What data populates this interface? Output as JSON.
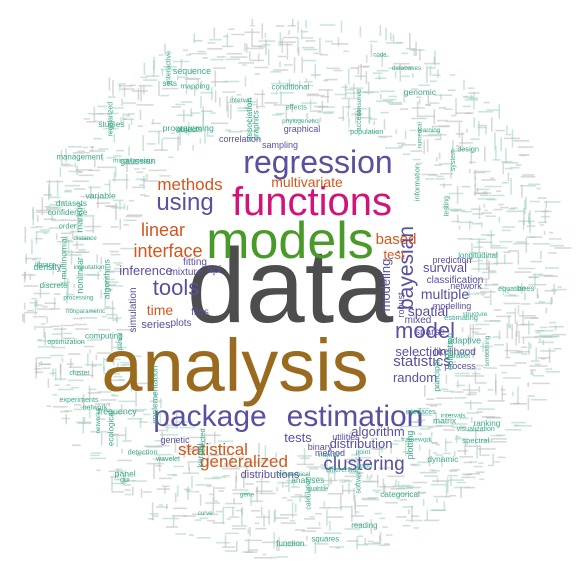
{
  "palette": {
    "gray": "#4d4d4d",
    "brown": "#9a6a1f",
    "purple": "#5a4fa0",
    "green": "#4a9a2a",
    "magenta": "#d1147a",
    "orange": "#d4561a",
    "teal": "#3aa88a",
    "background": "#ffffff"
  },
  "words": [
    {
      "text": "data",
      "color": "gray"
    },
    {
      "text": "analysis",
      "color": "brown"
    },
    {
      "text": "models",
      "color": "green"
    },
    {
      "text": "functions",
      "color": "magenta"
    },
    {
      "text": "regression",
      "color": "purple"
    },
    {
      "text": "package",
      "color": "purple"
    },
    {
      "text": "estimation",
      "color": "purple"
    },
    {
      "text": "using",
      "color": "purple"
    },
    {
      "text": "methods",
      "color": "orange"
    },
    {
      "text": "tools",
      "color": "purple"
    },
    {
      "text": "linear",
      "color": "orange"
    },
    {
      "text": "interface",
      "color": "orange"
    },
    {
      "text": "bayesian",
      "color": "purple"
    },
    {
      "text": "model",
      "color": "purple"
    },
    {
      "text": "multivariate",
      "color": "orange"
    },
    {
      "text": "statistical",
      "color": "orange"
    },
    {
      "text": "generalized",
      "color": "orange"
    },
    {
      "text": "clustering",
      "color": "purple"
    },
    {
      "text": "time",
      "color": "orange"
    },
    {
      "text": "inference",
      "color": "purple"
    },
    {
      "text": "based",
      "color": "orange"
    },
    {
      "text": "test",
      "color": "orange"
    },
    {
      "text": "spatial",
      "color": "purple"
    },
    {
      "text": "multiple",
      "color": "purple"
    },
    {
      "text": "survival",
      "color": "purple"
    },
    {
      "text": "statistics",
      "color": "purple"
    },
    {
      "text": "selection",
      "color": "purple"
    },
    {
      "text": "random",
      "color": "purple"
    },
    {
      "text": "distribution",
      "color": "purple"
    },
    {
      "text": "tests",
      "color": "purple"
    },
    {
      "text": "algorithm",
      "color": "purple"
    },
    {
      "text": "modeling",
      "color": "purple"
    },
    {
      "text": "series",
      "color": "purple"
    },
    {
      "text": "classification",
      "color": "purple"
    },
    {
      "text": "likelihood",
      "color": "purple"
    },
    {
      "text": "distributions",
      "color": "purple"
    },
    {
      "text": "mixed",
      "color": "purple"
    },
    {
      "text": "sparse",
      "color": "purple"
    },
    {
      "text": "api",
      "color": "purple"
    },
    {
      "text": "files",
      "color": "purple"
    },
    {
      "text": "plots",
      "color": "purple"
    },
    {
      "text": "fitting",
      "color": "purple"
    },
    {
      "text": "mixture",
      "color": "purple"
    },
    {
      "text": "simulation",
      "color": "purple"
    },
    {
      "text": "process",
      "color": "purple"
    },
    {
      "text": "method",
      "color": "purple"
    },
    {
      "text": "genetic",
      "color": "purple"
    },
    {
      "text": "binary",
      "color": "purple"
    },
    {
      "text": "utilities",
      "color": "purple"
    },
    {
      "text": "network",
      "color": "purple"
    },
    {
      "text": "prediction",
      "color": "purple"
    },
    {
      "text": "modelling",
      "color": "purple"
    },
    {
      "text": "robust",
      "color": "purple"
    },
    {
      "text": "sampling",
      "color": "purple"
    },
    {
      "text": "correlation",
      "color": "purple"
    },
    {
      "text": "graphical",
      "color": "purple"
    },
    {
      "text": "optimization",
      "color": "teal"
    },
    {
      "text": "visualization",
      "color": "teal"
    },
    {
      "text": "gaussian",
      "color": "teal"
    },
    {
      "text": "learning",
      "color": "teal"
    },
    {
      "text": "dynamic",
      "color": "teal"
    },
    {
      "text": "testing",
      "color": "teal"
    },
    {
      "text": "nonparametric",
      "color": "teal"
    },
    {
      "text": "network",
      "color": "teal"
    },
    {
      "text": "density",
      "color": "teal"
    },
    {
      "text": "conditional",
      "color": "teal"
    },
    {
      "text": "gene",
      "color": "teal"
    },
    {
      "text": "lasso",
      "color": "teal"
    },
    {
      "text": "framework",
      "color": "teal"
    },
    {
      "text": "adaptive",
      "color": "teal"
    },
    {
      "text": "design",
      "color": "teal"
    },
    {
      "text": "population",
      "color": "teal"
    },
    {
      "text": "hierarchical",
      "color": "teal"
    },
    {
      "text": "library",
      "color": "teal"
    },
    {
      "text": "structure",
      "color": "teal"
    },
    {
      "text": "phylogenetic",
      "color": "teal"
    },
    {
      "text": "information",
      "color": "teal"
    },
    {
      "text": "imputation",
      "color": "teal"
    },
    {
      "text": "censored",
      "color": "teal"
    },
    {
      "text": "effects",
      "color": "teal"
    },
    {
      "text": "confidence",
      "color": "teal"
    },
    {
      "text": "intervals",
      "color": "teal"
    },
    {
      "text": "distance",
      "color": "teal"
    },
    {
      "text": "partial",
      "color": "teal"
    },
    {
      "text": "networks",
      "color": "teal"
    },
    {
      "text": "variable",
      "color": "teal"
    },
    {
      "text": "matrix",
      "color": "teal"
    },
    {
      "text": "system",
      "color": "teal"
    },
    {
      "text": "differential",
      "color": "teal"
    },
    {
      "text": "objects",
      "color": "teal"
    },
    {
      "text": "implementation",
      "color": "teal"
    },
    {
      "text": "markov",
      "color": "teal"
    },
    {
      "text": "experiments",
      "color": "teal"
    },
    {
      "text": "graphics",
      "color": "teal"
    },
    {
      "text": "algorithms",
      "color": "teal"
    },
    {
      "text": "association",
      "color": "teal"
    },
    {
      "text": "datasets",
      "color": "teal"
    },
    {
      "text": "kernel",
      "color": "teal"
    },
    {
      "text": "software",
      "color": "teal"
    },
    {
      "text": "interval",
      "color": "teal"
    },
    {
      "text": "interactive",
      "color": "teal"
    },
    {
      "text": "detection",
      "color": "teal"
    },
    {
      "text": "parallel",
      "color": "teal"
    },
    {
      "text": "plotting",
      "color": "teal"
    },
    {
      "text": "sets",
      "color": "teal"
    },
    {
      "text": "analyses",
      "color": "teal"
    },
    {
      "text": "squares",
      "color": "teal"
    },
    {
      "text": "studies",
      "color": "teal"
    },
    {
      "text": "multinomial",
      "color": "teal"
    },
    {
      "text": "function",
      "color": "teal"
    },
    {
      "text": "processing",
      "color": "teal"
    },
    {
      "text": "calculation",
      "color": "teal"
    },
    {
      "text": "collection",
      "color": "teal"
    },
    {
      "text": "miscellaneous",
      "color": "teal"
    },
    {
      "text": "programming",
      "color": "teal"
    },
    {
      "text": "discrete",
      "color": "teal"
    },
    {
      "text": "categorical",
      "color": "teal"
    },
    {
      "text": "ecological",
      "color": "teal"
    },
    {
      "text": "nonlinear",
      "color": "teal"
    },
    {
      "text": "regularized",
      "color": "teal"
    },
    {
      "text": "normal",
      "color": "teal"
    },
    {
      "text": "gui",
      "color": "teal"
    },
    {
      "text": "principal",
      "color": "teal"
    },
    {
      "text": "curve",
      "color": "teal"
    },
    {
      "text": "point",
      "color": "teal"
    },
    {
      "text": "code",
      "color": "teal"
    },
    {
      "text": "access",
      "color": "teal"
    },
    {
      "text": "estimating",
      "color": "teal"
    },
    {
      "text": "smoothing",
      "color": "teal"
    },
    {
      "text": "databases",
      "color": "teal"
    },
    {
      "text": "management",
      "color": "teal"
    },
    {
      "text": "cluster",
      "color": "teal"
    },
    {
      "text": "reading",
      "color": "teal"
    },
    {
      "text": "numerical",
      "color": "teal"
    },
    {
      "text": "order",
      "color": "teal"
    },
    {
      "text": "selected",
      "color": "teal"
    },
    {
      "text": "interfaces",
      "color": "teal"
    },
    {
      "text": "spectral",
      "color": "teal"
    },
    {
      "text": "mapping",
      "color": "teal"
    },
    {
      "text": "panel",
      "color": "teal"
    },
    {
      "text": "ranking",
      "color": "teal"
    },
    {
      "text": "genomic",
      "color": "teal"
    },
    {
      "text": "quantile",
      "color": "teal"
    },
    {
      "text": "trees",
      "color": "teal"
    },
    {
      "text": "wavelet",
      "color": "teal"
    },
    {
      "text": "longitudinal",
      "color": "teal"
    },
    {
      "text": "computing",
      "color": "teal"
    },
    {
      "text": "equation",
      "color": "teal"
    },
    {
      "text": "sequence",
      "color": "teal"
    },
    {
      "text": "frequency",
      "color": "teal"
    }
  ]
}
